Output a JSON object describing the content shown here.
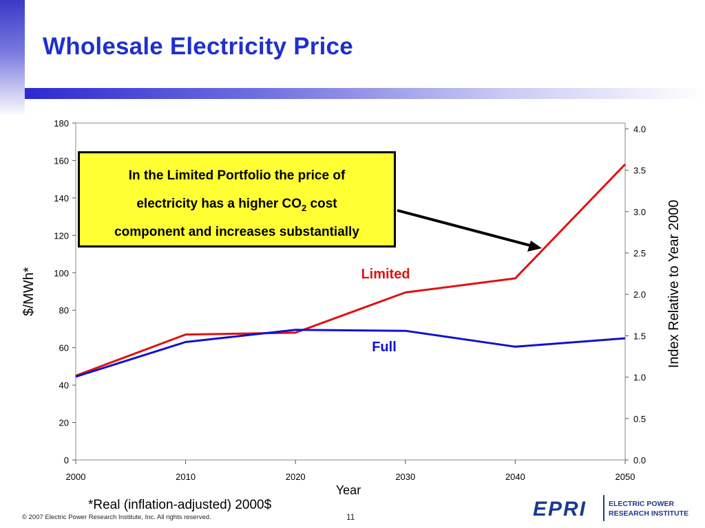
{
  "slide": {
    "title": "Wholesale Electricity Price",
    "callout": {
      "line1": "In the Limited Portfolio the price of",
      "line2_pre": "electricity has a higher CO",
      "line2_sub": "2",
      "line2_post": " cost",
      "line3": "component and increases substantially"
    },
    "footnote": "*Real (inflation-adjusted) 2000$",
    "copyright": "© 2007 Electric Power Research Institute, Inc. All rights reserved.",
    "page_number": "11",
    "logo": {
      "mark": "EPRI",
      "line1": "ELECTRIC POWER",
      "line2": "RESEARCH INSTITUTE",
      "color": "#1a3a8c"
    }
  },
  "chart_data": {
    "type": "line",
    "title": "",
    "xlabel": "Year",
    "ylabel": "$/MWh*",
    "y2label": "Index Relative to Year 2000",
    "x": [
      2000,
      2010,
      2020,
      2030,
      2040,
      2050
    ],
    "xticks": [
      2000,
      2010,
      2020,
      2030,
      2040,
      2050
    ],
    "xlim": [
      2000,
      2050
    ],
    "ylim": [
      0,
      180
    ],
    "yticks": [
      0,
      20,
      40,
      60,
      80,
      100,
      120,
      140,
      160,
      180
    ],
    "y2lim": [
      0,
      4.07
    ],
    "y2ticks": [
      "0.0",
      "0.5",
      "1.0",
      "1.5",
      "2.0",
      "2.5",
      "3.0",
      "3.5",
      "4.0"
    ],
    "grid": false,
    "legend": "inline labels",
    "series": [
      {
        "name": "Limited",
        "color": "#e01010",
        "values": [
          45,
          67,
          68,
          89.5,
          97,
          158
        ]
      },
      {
        "name": "Full",
        "color": "#1010d0",
        "values": [
          44.5,
          63,
          69.5,
          69,
          60.5,
          65
        ]
      }
    ]
  }
}
